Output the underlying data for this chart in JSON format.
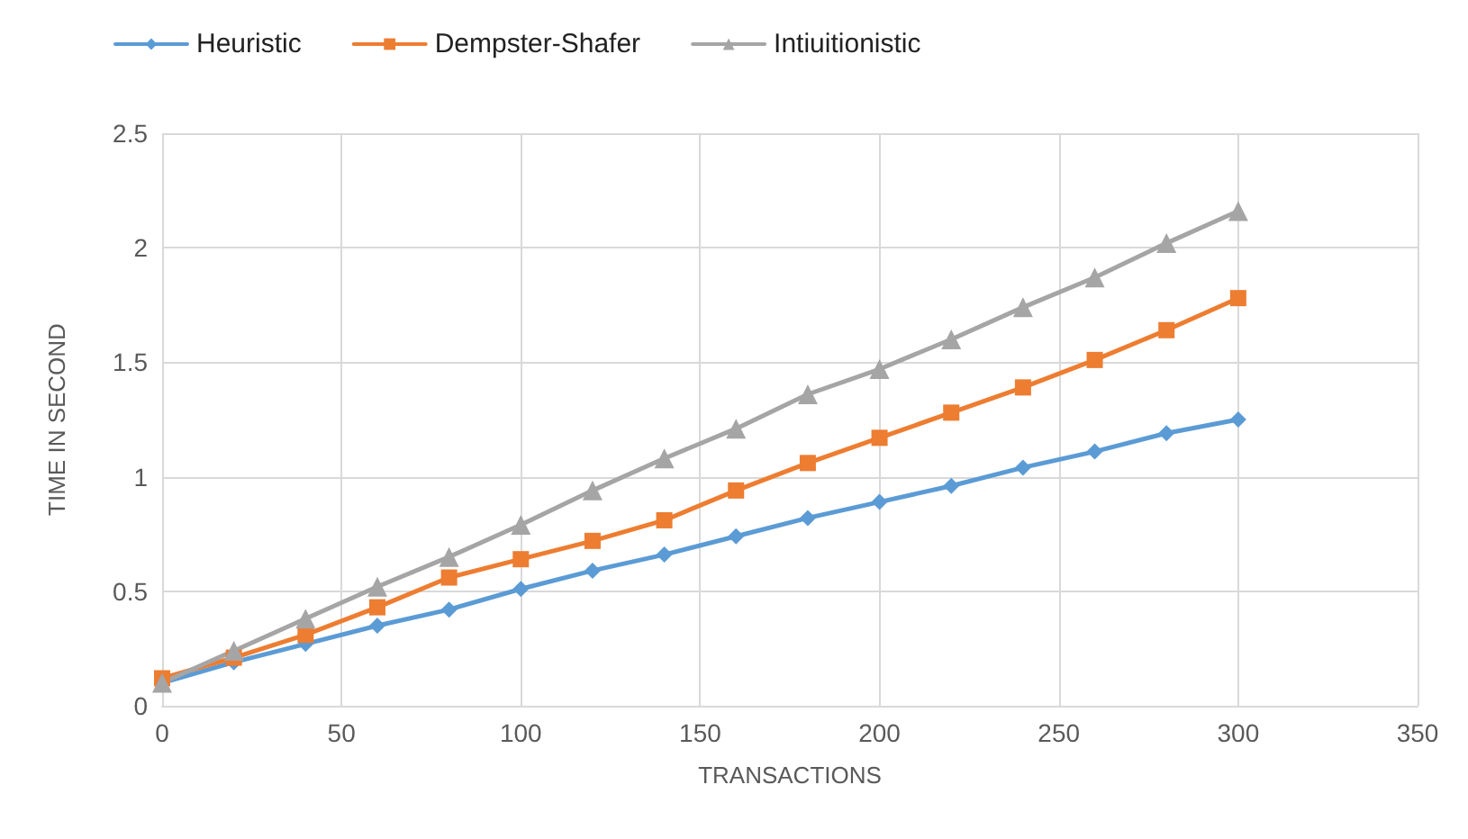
{
  "chart_data": {
    "type": "line",
    "xlabel": "TRANSACTIONS",
    "ylabel": "TIME IN SECOND",
    "x": [
      0,
      20,
      40,
      60,
      80,
      100,
      120,
      140,
      160,
      180,
      200,
      220,
      240,
      260,
      280,
      300
    ],
    "series": [
      {
        "name": "Heuristic",
        "color": "#5b9bd5",
        "marker": "diamond",
        "values": [
          0.1,
          0.19,
          0.27,
          0.35,
          0.42,
          0.51,
          0.59,
          0.66,
          0.74,
          0.82,
          0.89,
          0.96,
          1.04,
          1.11,
          1.19,
          1.25
        ]
      },
      {
        "name": "Dempster-Shafer",
        "color": "#ed7d31",
        "marker": "square",
        "values": [
          0.12,
          0.21,
          0.31,
          0.43,
          0.56,
          0.64,
          0.72,
          0.81,
          0.94,
          1.06,
          1.17,
          1.28,
          1.39,
          1.51,
          1.64,
          1.78
        ]
      },
      {
        "name": "Intiuitionistic",
        "color": "#a5a5a5",
        "marker": "triangle",
        "values": [
          0.1,
          0.24,
          0.38,
          0.52,
          0.65,
          0.79,
          0.94,
          1.08,
          1.21,
          1.36,
          1.47,
          1.6,
          1.74,
          1.87,
          2.02,
          2.16
        ]
      }
    ],
    "xlim": [
      0,
      350
    ],
    "xticks": [
      0,
      50,
      100,
      150,
      200,
      250,
      300,
      350
    ],
    "ylim": [
      0,
      2.5
    ],
    "yticks": [
      0,
      0.5,
      1,
      1.5,
      2,
      2.5
    ],
    "grid": true,
    "legend": "top left",
    "line_style": "solid"
  }
}
